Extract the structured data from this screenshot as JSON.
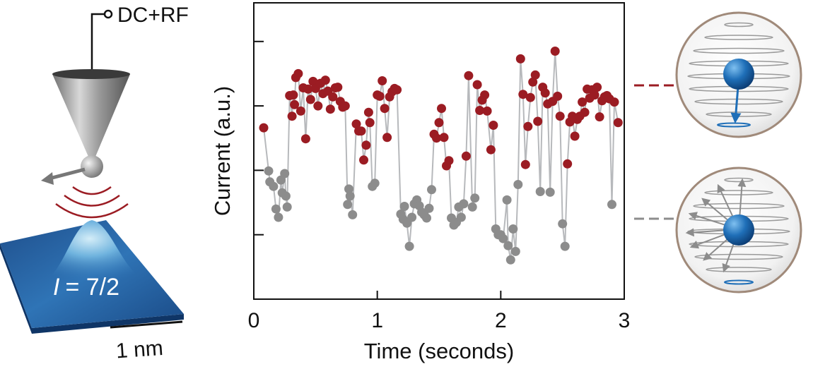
{
  "figure": {
    "tip_label": "DC+RF",
    "spin_label": "= 7/2",
    "spin_symbol": "I",
    "scale_label": "1 nm"
  },
  "chart_data": {
    "type": "scatter",
    "title": "",
    "xlabel": "Time (seconds)",
    "ylabel": "Current (a.u.)",
    "xlim": [
      0,
      3
    ],
    "ylim": [
      0,
      4.6
    ],
    "xticks": [
      0,
      1,
      2,
      3
    ],
    "xtick_labels": [
      "0",
      "1",
      "2",
      "3"
    ],
    "yticks": [
      1,
      2,
      3,
      4
    ],
    "grid": false,
    "legend": "none",
    "high_color": "#9b1c23",
    "low_color": "#8c8c8c",
    "line_color": "#b7b9bc",
    "series": [
      {
        "values": [
          [
            0.08,
            2.66
          ],
          [
            0.12,
            1.99
          ],
          [
            0.13,
            1.82
          ],
          [
            0.16,
            1.75
          ],
          [
            0.18,
            1.4
          ],
          [
            0.2,
            1.27
          ],
          [
            0.22,
            1.85
          ],
          [
            0.23,
            1.65
          ],
          [
            0.25,
            1.95
          ],
          [
            0.26,
            1.6
          ],
          [
            0.27,
            1.43
          ],
          [
            0.29,
            3.16
          ],
          [
            0.31,
            2.84
          ],
          [
            0.32,
            3.17
          ],
          [
            0.33,
            3.02
          ],
          [
            0.34,
            3.44
          ],
          [
            0.36,
            3.5
          ],
          [
            0.38,
            2.92
          ],
          [
            0.4,
            3.28
          ],
          [
            0.42,
            2.49
          ],
          [
            0.44,
            3.26
          ],
          [
            0.46,
            3.1
          ],
          [
            0.48,
            3.38
          ],
          [
            0.5,
            3.27
          ],
          [
            0.52,
            3.0
          ],
          [
            0.54,
            3.35
          ],
          [
            0.56,
            3.19
          ],
          [
            0.58,
            3.4
          ],
          [
            0.6,
            3.23
          ],
          [
            0.62,
            2.95
          ],
          [
            0.64,
            3.14
          ],
          [
            0.66,
            3.28
          ],
          [
            0.68,
            3.29
          ],
          [
            0.7,
            3.07
          ],
          [
            0.72,
            2.98
          ],
          [
            0.74,
            3.0
          ],
          [
            0.76,
            1.47
          ],
          [
            0.77,
            1.71
          ],
          [
            0.78,
            1.6
          ],
          [
            0.8,
            1.31
          ],
          [
            0.83,
            2.72
          ],
          [
            0.85,
            2.61
          ],
          [
            0.87,
            2.61
          ],
          [
            0.89,
            2.16
          ],
          [
            0.91,
            2.39
          ],
          [
            0.93,
            2.9
          ],
          [
            0.94,
            2.74
          ],
          [
            0.96,
            1.75
          ],
          [
            0.98,
            1.8
          ],
          [
            1.0,
            3.17
          ],
          [
            1.02,
            3.15
          ],
          [
            1.04,
            3.39
          ],
          [
            1.06,
            2.96
          ],
          [
            1.08,
            2.51
          ],
          [
            1.1,
            3.14
          ],
          [
            1.12,
            3.22
          ],
          [
            1.14,
            3.27
          ],
          [
            1.16,
            3.25
          ],
          [
            1.19,
            1.32
          ],
          [
            1.21,
            1.24
          ],
          [
            1.22,
            1.44
          ],
          [
            1.24,
            1.18
          ],
          [
            1.26,
            0.82
          ],
          [
            1.28,
            1.27
          ],
          [
            1.3,
            1.48
          ],
          [
            1.32,
            1.54
          ],
          [
            1.34,
            1.45
          ],
          [
            1.36,
            1.35
          ],
          [
            1.38,
            1.31
          ],
          [
            1.4,
            1.26
          ],
          [
            1.42,
            1.41
          ],
          [
            1.44,
            1.7
          ],
          [
            1.46,
            2.56
          ],
          [
            1.48,
            2.5
          ],
          [
            1.5,
            2.74
          ],
          [
            1.52,
            2.96
          ],
          [
            1.54,
            2.51
          ],
          [
            1.56,
            2.07
          ],
          [
            1.58,
            2.15
          ],
          [
            1.6,
            1.26
          ],
          [
            1.62,
            1.15
          ],
          [
            1.64,
            1.19
          ],
          [
            1.66,
            1.43
          ],
          [
            1.68,
            1.27
          ],
          [
            1.7,
            1.48
          ],
          [
            1.72,
            2.22
          ],
          [
            1.74,
            3.47
          ],
          [
            1.77,
            1.43
          ],
          [
            1.79,
            1.57
          ],
          [
            1.81,
            3.33
          ],
          [
            1.83,
            2.93
          ],
          [
            1.85,
            3.09
          ],
          [
            1.87,
            3.17
          ],
          [
            1.89,
            2.92
          ],
          [
            1.92,
            2.32
          ],
          [
            1.94,
            2.7
          ],
          [
            1.96,
            1.09
          ],
          [
            1.98,
            1.0
          ],
          [
            2.0,
            1.0
          ],
          [
            2.02,
            0.94
          ],
          [
            2.05,
            1.54
          ],
          [
            2.06,
            0.83
          ],
          [
            2.08,
            0.61
          ],
          [
            2.1,
            1.09
          ],
          [
            2.12,
            0.74
          ],
          [
            2.14,
            1.78
          ],
          [
            2.16,
            3.73
          ],
          [
            2.18,
            3.18
          ],
          [
            2.2,
            2.09
          ],
          [
            2.22,
            2.68
          ],
          [
            2.24,
            3.13
          ],
          [
            2.26,
            3.37
          ],
          [
            2.28,
            3.48
          ],
          [
            2.3,
            2.76
          ],
          [
            2.32,
            1.67
          ],
          [
            2.34,
            3.29
          ],
          [
            2.36,
            3.2
          ],
          [
            2.38,
            3.03
          ],
          [
            2.4,
            1.66
          ],
          [
            2.42,
            3.07
          ],
          [
            2.44,
            3.85
          ],
          [
            2.46,
            3.15
          ],
          [
            2.48,
            2.84
          ],
          [
            2.5,
            1.17
          ],
          [
            2.52,
            0.82
          ],
          [
            2.54,
            2.1
          ],
          [
            2.56,
            2.75
          ],
          [
            2.58,
            2.84
          ],
          [
            2.6,
            2.53
          ],
          [
            2.62,
            2.79
          ],
          [
            2.64,
            2.84
          ],
          [
            2.66,
            3.06
          ],
          [
            2.68,
            2.9
          ],
          [
            2.7,
            3.26
          ],
          [
            2.72,
            3.12
          ],
          [
            2.74,
            3.25
          ],
          [
            2.76,
            3.17
          ],
          [
            2.78,
            3.29
          ],
          [
            2.8,
            2.83
          ],
          [
            2.82,
            3.08
          ],
          [
            2.84,
            3.14
          ],
          [
            2.86,
            3.16
          ],
          [
            2.88,
            3.11
          ],
          [
            2.9,
            1.47
          ],
          [
            2.92,
            3.06
          ],
          [
            2.95,
            2.74
          ]
        ]
      }
    ],
    "high_threshold": 2.07
  }
}
